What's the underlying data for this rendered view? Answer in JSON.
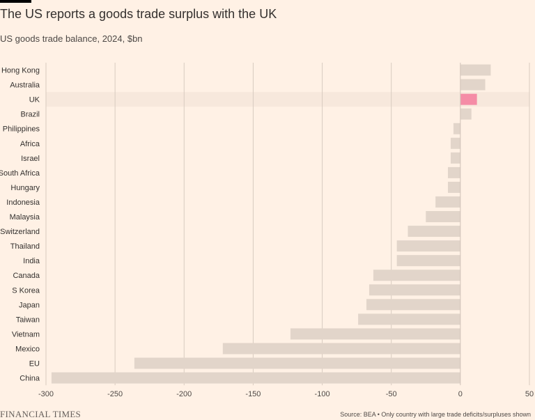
{
  "header": {
    "title": "The US reports a goods trade surplus with the UK",
    "subtitle": "US goods trade balance, 2024, $bn"
  },
  "footer": {
    "brand": "FINANCIAL TIMES",
    "source": "Source: BEA • Only country with large trade deficits/surpluses shown"
  },
  "colors": {
    "bar": "#e2d5ca",
    "highlight_bar": "#f58ca6",
    "highlight_band": "#f7e8dc",
    "grid": "#d8cbc0",
    "zero_line": "#cfc2b7"
  },
  "chart_data": {
    "type": "bar",
    "orientation": "horizontal",
    "categories": [
      "Hong Kong",
      "Australia",
      "UK",
      "Brazil",
      "Philippines",
      "Africa",
      "Israel",
      "South Africa",
      "Hungary",
      "Indonesia",
      "Malaysia",
      "Switzerland",
      "Thailand",
      "India",
      "Canada",
      "S Korea",
      "Japan",
      "Taiwan",
      "Vietnam",
      "Mexico",
      "EU",
      "China"
    ],
    "values": [
      22,
      18,
      12,
      8,
      -5,
      -7,
      -7,
      -9,
      -9,
      -18,
      -25,
      -38,
      -46,
      -46,
      -63,
      -66,
      -68,
      -74,
      -123,
      -172,
      -236,
      -296
    ],
    "highlight": "UK",
    "xlim": [
      -300,
      50
    ],
    "xticks": [
      "-300",
      "-250",
      "-200",
      "-150",
      "-100",
      "-50",
      "0",
      "50"
    ],
    "xtick_values": [
      -300,
      -250,
      -200,
      -150,
      -100,
      -50,
      0,
      50
    ],
    "grid": true
  }
}
